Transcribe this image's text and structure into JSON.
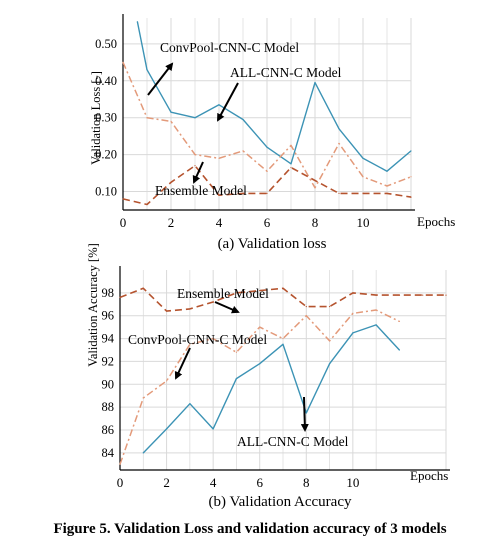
{
  "figure_caption": "Figure 5. Validation Loss and validation accuracy of 3 models",
  "colors": {
    "ensemble": "#b5532e",
    "convpool": "#e39a7a",
    "allcnn": "#3c93b5",
    "grid": "#d9d9d9",
    "axis": "#000000"
  },
  "chart_data": [
    {
      "type": "line",
      "subtitle": "(a) Validation loss",
      "ylabel": "Validation Loss [-]",
      "xlabel": "Epochs",
      "xlim": [
        0,
        12
      ],
      "ylim": [
        0.05,
        0.57
      ],
      "xticks": [
        "0",
        "2",
        "4",
        "6",
        "8",
        "10"
      ],
      "yticks": [
        "0.10",
        "0.20",
        "0.30",
        "0.40",
        "0.50"
      ],
      "grid": true,
      "series": [
        {
          "name": "ALL-CNN-C Model",
          "x": [
            0.6,
            1,
            2,
            3,
            4,
            5,
            6,
            7,
            8,
            9,
            10,
            11,
            12
          ],
          "values": [
            0.56,
            0.43,
            0.315,
            0.3,
            0.335,
            0.295,
            0.22,
            0.175,
            0.395,
            0.27,
            0.19,
            0.155,
            0.21
          ]
        },
        {
          "name": "ConvPool-CNN-C Model",
          "x": [
            0,
            1,
            2,
            3,
            4,
            5,
            6,
            7,
            8,
            9,
            10,
            11,
            12
          ],
          "values": [
            0.45,
            0.3,
            0.29,
            0.2,
            0.19,
            0.21,
            0.155,
            0.225,
            0.11,
            0.23,
            0.14,
            0.115,
            0.14
          ]
        },
        {
          "name": "Ensemble Model",
          "x": [
            0,
            1,
            2,
            3,
            4,
            5,
            6,
            7,
            8,
            9,
            10,
            11,
            12
          ],
          "values": [
            0.08,
            0.065,
            0.125,
            0.17,
            0.09,
            0.095,
            0.095,
            0.165,
            0.13,
            0.095,
            0.095,
            0.095,
            0.085
          ]
        }
      ],
      "annotations": [
        "ConvPool-CNN-C Model",
        "ALL-CNN-C Model",
        "Ensemble Model"
      ]
    },
    {
      "type": "line",
      "subtitle": "(b) Validation Accuracy",
      "ylabel": "Validation Accuracy [%]",
      "xlabel": "Epochs",
      "xlim": [
        0,
        14
      ],
      "ylim": [
        82.5,
        100
      ],
      "xticks": [
        "0",
        "2",
        "4",
        "6",
        "8",
        "10"
      ],
      "yticks": [
        "84",
        "86",
        "88",
        "90",
        "92",
        "94",
        "96",
        "98"
      ],
      "grid": true,
      "series": [
        {
          "name": "Ensemble Model",
          "x": [
            0,
            1,
            2,
            3,
            4,
            5,
            6,
            7,
            8,
            9,
            10,
            11,
            12,
            13,
            14
          ],
          "values": [
            97.6,
            98.4,
            96.4,
            96.6,
            97.2,
            98.0,
            98.2,
            98.4,
            96.8,
            96.8,
            98.0,
            97.8,
            97.8,
            97.8,
            97.8
          ]
        },
        {
          "name": "ConvPool-CNN-C Model",
          "x": [
            0,
            1,
            2,
            3,
            4,
            5,
            6,
            7,
            8,
            9,
            10,
            11,
            12
          ],
          "values": [
            83.0,
            88.8,
            90.3,
            93.5,
            94.0,
            92.8,
            95.0,
            94.0,
            96.0,
            93.8,
            96.2,
            96.5,
            95.5
          ]
        },
        {
          "name": "ALL-CNN-C Model",
          "x": [
            1,
            2,
            3,
            4,
            5,
            6,
            7,
            8,
            9,
            10,
            11,
            12
          ],
          "values": [
            84.0,
            86.1,
            88.3,
            86.1,
            90.5,
            91.8,
            93.5,
            87.5,
            91.8,
            94.5,
            95.2,
            93.0
          ]
        }
      ],
      "annotations": [
        "Ensemble Model",
        "ConvPool-CNN-C Model",
        "ALL-CNN-C Model"
      ]
    }
  ]
}
